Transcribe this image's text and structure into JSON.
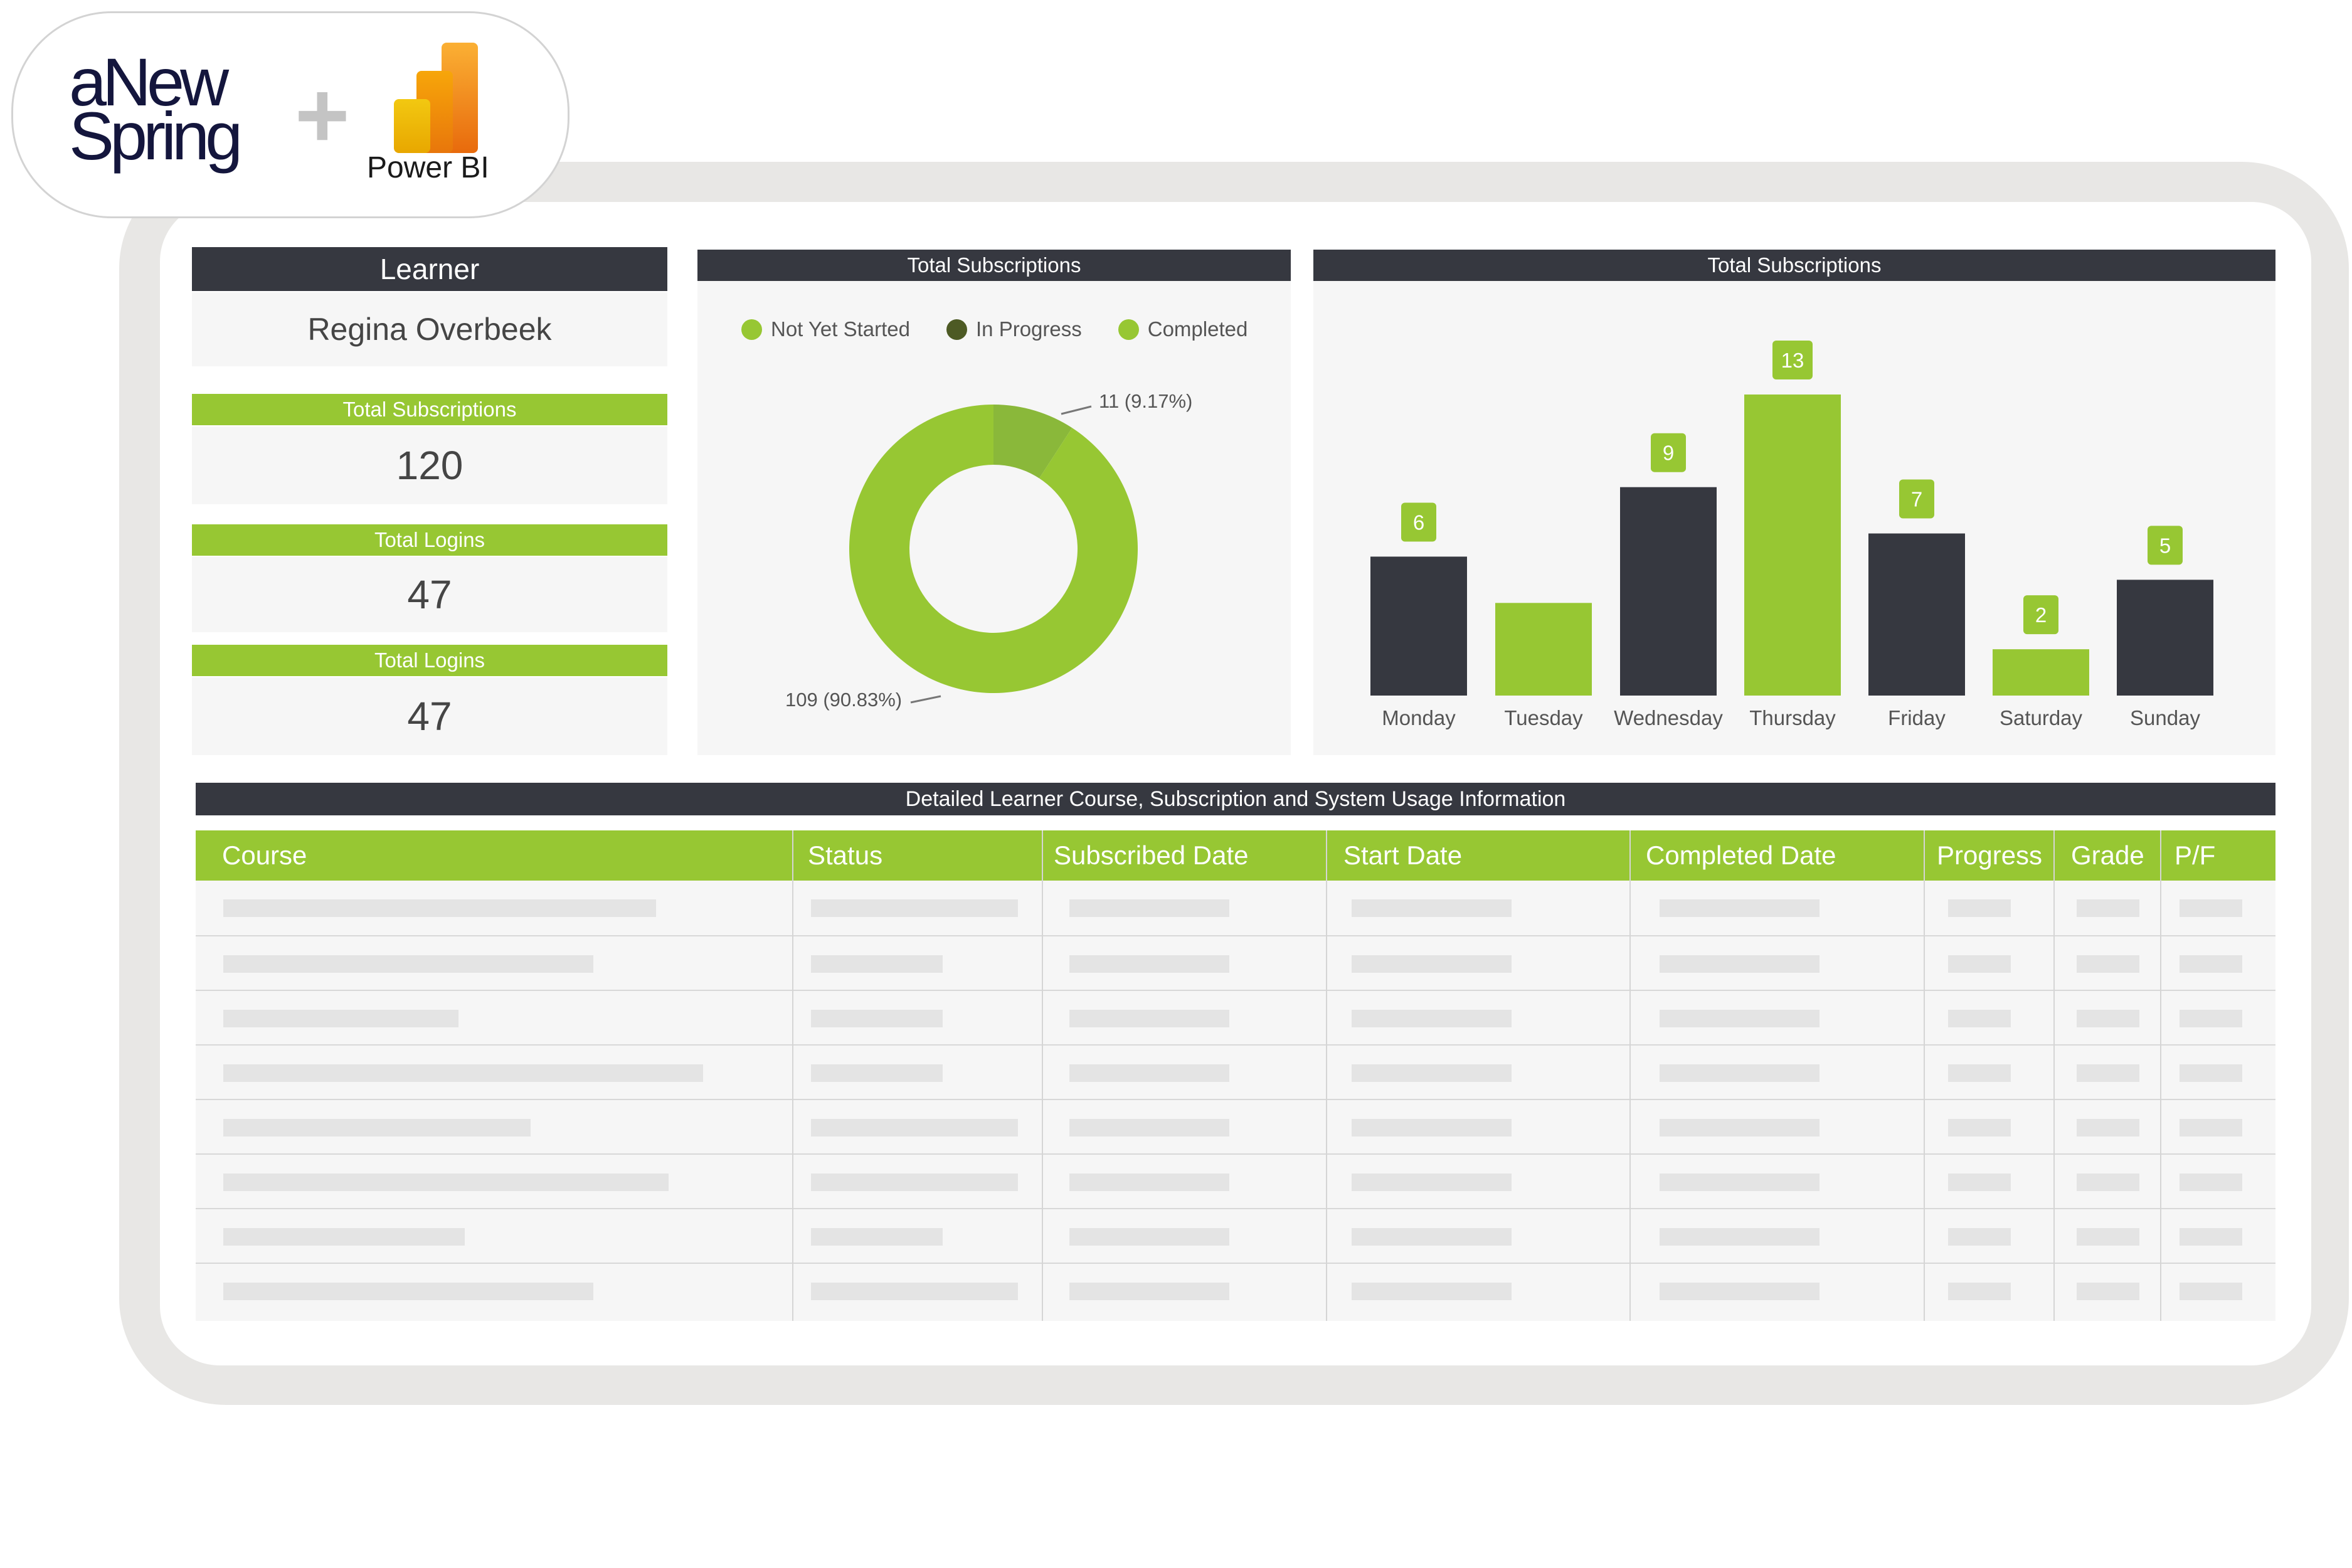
{
  "brand": {
    "name": "aNewSpring",
    "line1": "aNew",
    "line2": "Spring",
    "plus": "+",
    "partner": "Power BI"
  },
  "learner_card": {
    "header": "Learner",
    "name": "Regina Overbeek"
  },
  "kpis": [
    {
      "label": "Total Subscriptions",
      "value": "120"
    },
    {
      "label": "Total Logins",
      "value": "47"
    },
    {
      "label": "Total Logins",
      "value": "47"
    }
  ],
  "donut_panel": {
    "title": "Total Subscriptions",
    "legend": [
      {
        "label": "Not Yet Started",
        "color": "#97c733"
      },
      {
        "label": "In Progress",
        "color": "#4d5a24"
      },
      {
        "label": "Completed",
        "color": "#97c733"
      }
    ],
    "callouts": {
      "small": "11 (9.17%)",
      "large": "109 (90.83%)"
    }
  },
  "bar_panel": {
    "title": "Total Subscriptions"
  },
  "chart_data": [
    {
      "type": "pie",
      "title": "Total Subscriptions",
      "slices": [
        {
          "value": 11,
          "percent": 9.17,
          "color": "#8ab83a",
          "label": "11 (9.17%)"
        },
        {
          "value": 109,
          "percent": 90.83,
          "color": "#97c733",
          "label": "109 (90.83%)"
        }
      ],
      "legend": [
        "Not Yet Started",
        "In Progress",
        "Completed"
      ],
      "legend_position": "top"
    },
    {
      "type": "bar",
      "title": "Total Subscriptions",
      "categories": [
        "Monday",
        "Tuesday",
        "Wednesday",
        "Thursday",
        "Friday",
        "Saturday",
        "Sunday"
      ],
      "values": [
        6,
        4,
        9,
        13,
        7,
        2,
        5
      ],
      "data_labels": [
        "6",
        "",
        "9",
        "13",
        "7",
        "2",
        "5"
      ],
      "colors": [
        "#363840",
        "#97c733",
        "#363840",
        "#97c733",
        "#363840",
        "#97c733",
        "#363840"
      ],
      "ylim": [
        0,
        13
      ],
      "grid": false
    }
  ],
  "table": {
    "title": "Detailed Learner Course, Subscription and System Usage Information",
    "columns": [
      "Course",
      "Status",
      "Subscribed Date",
      "Start Date",
      "Completed Date",
      "Progress",
      "Grade",
      "P/F"
    ]
  }
}
